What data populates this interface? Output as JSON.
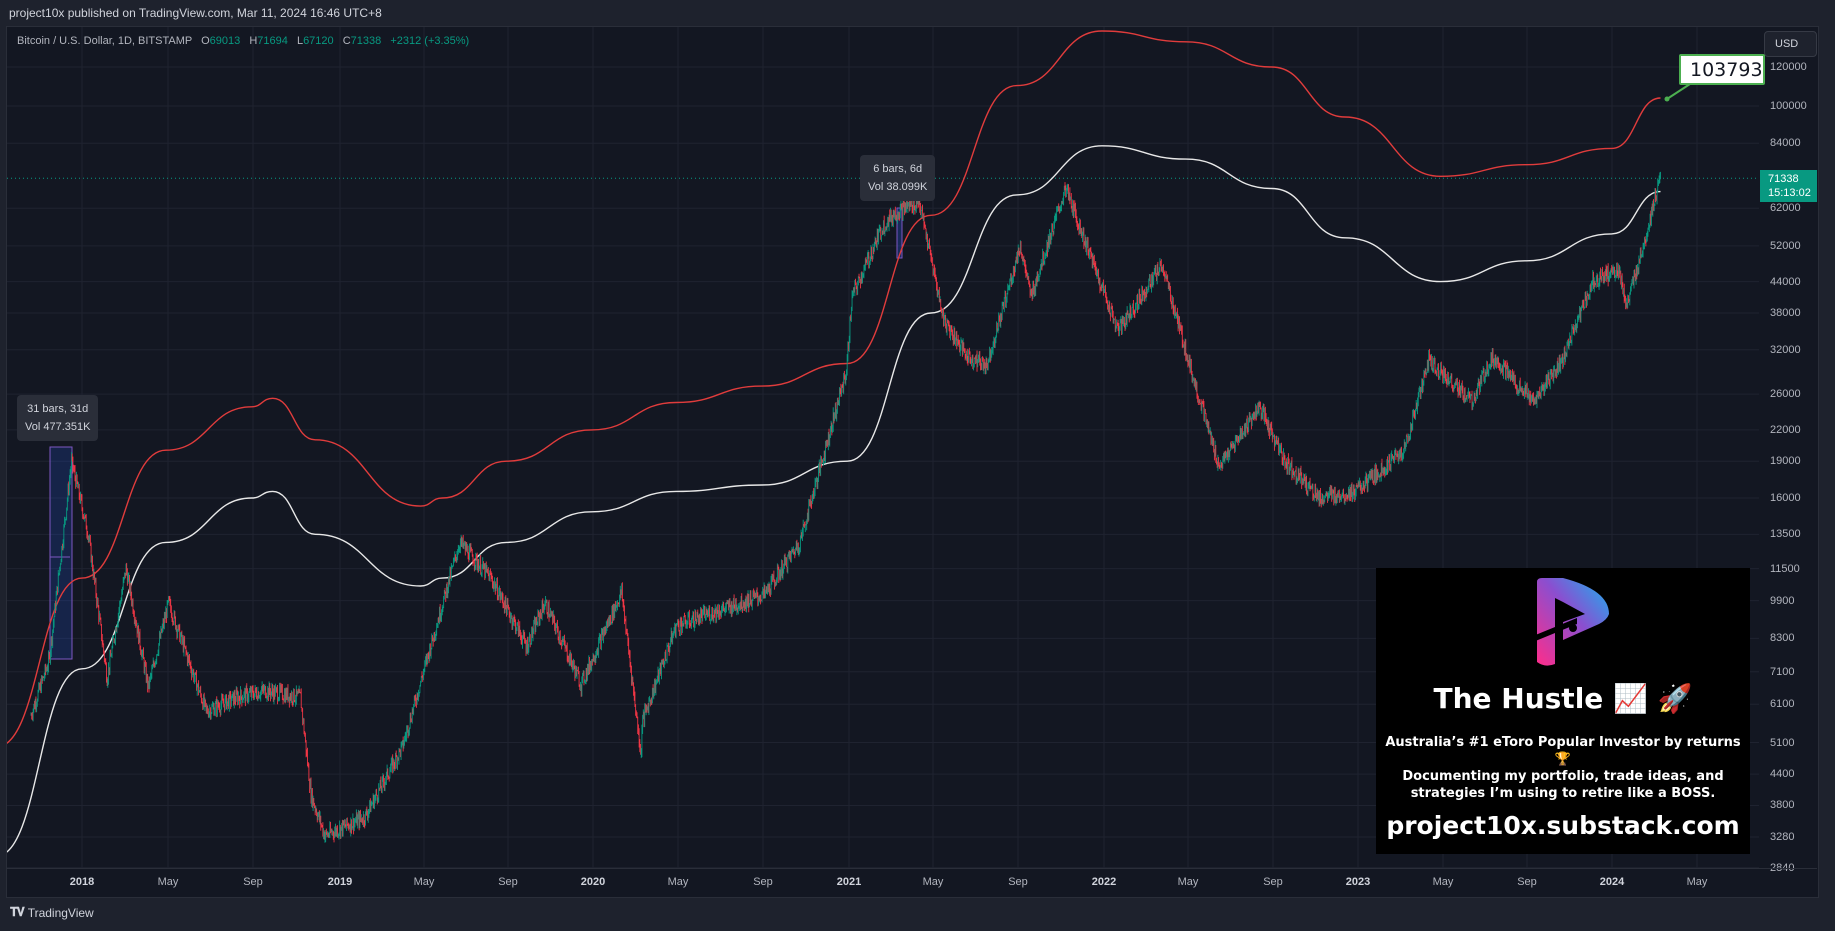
{
  "header": {
    "published": "project10x published on TradingView.com, Mar 11, 2024 16:46 UTC+8"
  },
  "legend": {
    "symbol": "Bitcoin / U.S. Dollar, 1D, BITSTAMP",
    "o_label": "O",
    "o": "69013",
    "h_label": "H",
    "h": "71694",
    "l_label": "L",
    "l": "67120",
    "c_label": "C",
    "c": "71338",
    "change": "+2312 (+3.35%)"
  },
  "price_axis": {
    "currency": "USD",
    "last_price": "71338",
    "countdown": "15:13:02",
    "ticks": [
      "120000",
      "100000",
      "84000",
      "62000",
      "52000",
      "44000",
      "38000",
      "32000",
      "26000",
      "22000",
      "19000",
      "16000",
      "13500",
      "11500",
      "9900",
      "8300",
      "7100",
      "6100",
      "5100",
      "4400",
      "3800",
      "3280",
      "2840"
    ]
  },
  "time_axis": {
    "ticks": [
      "2018",
      "May",
      "Sep",
      "2019",
      "May",
      "Sep",
      "2020",
      "May",
      "Sep",
      "2021",
      "May",
      "Sep",
      "2022",
      "May",
      "Sep",
      "2023",
      "May",
      "Sep",
      "2024",
      "May"
    ]
  },
  "annotations": {
    "range1": {
      "bars": "31 bars, 31d",
      "vol": "Vol 477.351K"
    },
    "range2": {
      "bars": "6 bars, 6d",
      "vol": "Vol 38.099K"
    },
    "callout": "103793"
  },
  "promo": {
    "title": "The Hustle 📈 🚀",
    "line1": "Australia’s #1 eToro Popular Investor by returns 🏆",
    "line2": "Documenting my portfolio, trade ideas, and",
    "line3": "strategies I’m using to retire like a BOSS.",
    "url": "project10x.substack.com"
  },
  "footer": {
    "brand": "TradingView"
  },
  "colors": {
    "up": "#089981",
    "down": "#f23645",
    "upper_band": "#e03c3c",
    "lower_band": "#e8e8e8",
    "background": "#131722",
    "callout_border": "#4caf50"
  },
  "chart_data": {
    "type": "candlestick",
    "title": "Bitcoin / U.S. Dollar, 1D, BITSTAMP",
    "yscale": "log",
    "ylim": [
      2700,
      150000
    ],
    "xlabel": "",
    "ylabel": "USD",
    "x_ticks": [
      "2018",
      "May",
      "Sep",
      "2019",
      "May",
      "Sep",
      "2020",
      "May",
      "Sep",
      "2021",
      "May",
      "Sep",
      "2022",
      "May",
      "Sep",
      "2023",
      "May",
      "Sep",
      "2024",
      "May"
    ],
    "last_ohlc": {
      "open": 69013,
      "high": 71694,
      "low": 67120,
      "close": 71338,
      "change": 2312,
      "change_pct": 3.35
    },
    "price_path": {
      "dates": [
        "2017-10-20",
        "2017-11-15",
        "2017-12-17",
        "2018-01-10",
        "2018-02-06",
        "2018-03-05",
        "2018-04-06",
        "2018-05-05",
        "2018-06-28",
        "2018-08-10",
        "2018-09-20",
        "2018-11-10",
        "2018-11-25",
        "2018-12-15",
        "2019-02-10",
        "2019-04-05",
        "2019-06-26",
        "2019-08-10",
        "2019-09-30",
        "2019-10-26",
        "2019-12-17",
        "2020-02-13",
        "2020-03-12",
        "2020-03-13",
        "2020-05-01",
        "2020-06-15",
        "2020-07-25",
        "2020-09-05",
        "2020-10-25",
        "2020-12-31",
        "2021-01-08",
        "2021-02-21",
        "2021-03-13",
        "2021-04-14",
        "2021-05-19",
        "2021-06-22",
        "2021-07-20",
        "2021-09-06",
        "2021-09-21",
        "2021-11-10",
        "2022-01-24",
        "2022-03-28",
        "2022-05-12",
        "2022-06-18",
        "2022-08-14",
        "2022-09-20",
        "2022-11-09",
        "2022-12-31",
        "2023-03-10",
        "2023-04-14",
        "2023-06-15",
        "2023-07-14",
        "2023-09-11",
        "2023-10-20",
        "2023-12-05",
        "2024-01-11",
        "2024-01-23",
        "2024-02-15",
        "2024-03-11"
      ],
      "close": [
        5800,
        7500,
        19000,
        13500,
        6900,
        11500,
        6600,
        9800,
        5900,
        6300,
        6500,
        6300,
        4000,
        3300,
        3600,
        5000,
        13000,
        11000,
        8000,
        9800,
        6700,
        10300,
        4800,
        5600,
        8800,
        9300,
        9700,
        10200,
        13000,
        29000,
        41000,
        57000,
        61000,
        64000,
        37000,
        31000,
        29800,
        52000,
        41000,
        68000,
        35000,
        47500,
        28000,
        18500,
        24500,
        19000,
        16000,
        16500,
        20000,
        30500,
        25000,
        31000,
        25000,
        30000,
        44000,
        46500,
        39000,
        52000,
        71338
      ]
    },
    "upper_band": {
      "name": "Upper band (red)",
      "dates": [
        "2017-09-01",
        "2018-01-01",
        "2018-05-01",
        "2018-09-01",
        "2018-10-01",
        "2018-12-01",
        "2019-05-01",
        "2019-06-01",
        "2019-09-01",
        "2020-01-01",
        "2020-05-01",
        "2020-09-01",
        "2021-01-01",
        "2021-05-01",
        "2021-09-01",
        "2022-01-01",
        "2022-05-01",
        "2022-09-01",
        "2022-12-15",
        "2023-05-01",
        "2023-09-01",
        "2024-01-01",
        "2024-03-11"
      ],
      "values": [
        5000,
        11000,
        20000,
        24500,
        25500,
        21000,
        15400,
        16000,
        19000,
        22000,
        25000,
        27000,
        30000,
        60000,
        110000,
        142000,
        135000,
        120000,
        95000,
        72000,
        76000,
        82000,
        103793
      ]
    },
    "lower_band": {
      "name": "Lower band (white)",
      "dates": [
        "2017-09-01",
        "2018-01-01",
        "2018-05-01",
        "2018-09-01",
        "2018-10-01",
        "2018-12-01",
        "2019-05-01",
        "2019-06-01",
        "2019-09-01",
        "2020-01-01",
        "2020-05-01",
        "2020-09-01",
        "2021-01-01",
        "2021-05-01",
        "2021-09-01",
        "2022-01-01",
        "2022-05-01",
        "2022-09-01",
        "2022-12-15",
        "2023-05-01",
        "2023-09-01",
        "2024-01-01",
        "2024-03-11"
      ],
      "values": [
        3000,
        7200,
        13000,
        16000,
        16500,
        13500,
        10600,
        11000,
        13000,
        15000,
        16500,
        17000,
        19000,
        38000,
        66000,
        83000,
        78000,
        68000,
        54000,
        44000,
        48500,
        55000,
        67000
      ]
    },
    "measurements": [
      {
        "label": "31 bars, 31d",
        "volume": "477.351K"
      },
      {
        "label": "6 bars, 6d",
        "volume": "38.099K"
      }
    ],
    "callout_value": 103793,
    "last_price_line": 71338
  }
}
